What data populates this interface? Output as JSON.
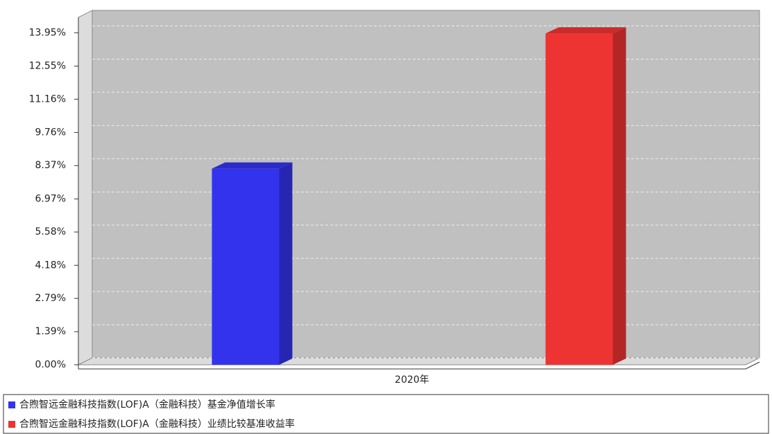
{
  "chart_data": {
    "type": "bar3d",
    "categories": [
      "2020年"
    ],
    "series": [
      {
        "name": "合煦智远金融科技指数(LOF)A（金融科技）基金净值增长率",
        "color": "#3333ee",
        "values": [
          8.24
        ]
      },
      {
        "name": "合煦智远金融科技指数(LOF)A（金融科技）业绩比较基准收益率",
        "color": "#ee3333",
        "values": [
          13.92
        ]
      }
    ],
    "ylim": [
      0,
      14.6
    ],
    "yticks": [
      {
        "value": 0,
        "label": "0.00%"
      },
      {
        "value": 1.39,
        "label": "1.39%"
      },
      {
        "value": 2.79,
        "label": "2.79%"
      },
      {
        "value": 4.18,
        "label": "4.18%"
      },
      {
        "value": 5.58,
        "label": "5.58%"
      },
      {
        "value": 6.97,
        "label": "6.97%"
      },
      {
        "value": 8.37,
        "label": "8.37%"
      },
      {
        "value": 9.76,
        "label": "9.76%"
      },
      {
        "value": 11.16,
        "label": "11.16%"
      },
      {
        "value": 12.55,
        "label": "12.55%"
      },
      {
        "value": 13.95,
        "label": "13.95%"
      }
    ],
    "grid": true
  }
}
